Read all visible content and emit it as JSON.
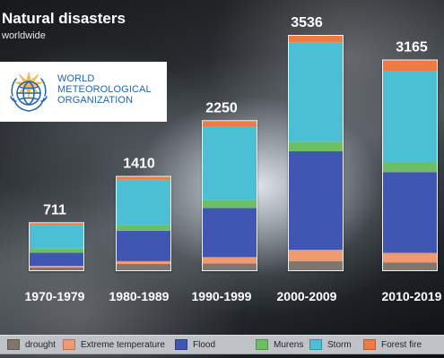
{
  "header": {
    "title": "Natural disasters",
    "subtitle": "worldwide"
  },
  "logo": {
    "lines": [
      "WORLD",
      "METEOROLOGICAL",
      "ORGANIZATION"
    ],
    "icon": "world-meteorological-organization-emblem"
  },
  "colors": {
    "drought": "#7f766f",
    "extreme_temperature": "#f09a71",
    "flood": "#3f56b2",
    "murens": "#6cbf62",
    "storm": "#4bbfd3",
    "forest_fire": "#f07a43",
    "bar_outline": "#f1f3f5",
    "logo_blue": "#1f64b5"
  },
  "chart_data": {
    "type": "bar",
    "stacked": true,
    "title": "Natural disasters",
    "subtitle": "worldwide",
    "categories": [
      "1970-1979",
      "1980-1989",
      "1990-1999",
      "2000-2009",
      "2010-2019"
    ],
    "totals": [
      711,
      1410,
      2250,
      3536,
      3165
    ],
    "series": [
      {
        "name": "drought",
        "values": [
          42,
          96,
          102,
          136,
          119
        ]
      },
      {
        "name": "Extreme temperature",
        "values": [
          25,
          41,
          96,
          172,
          144
        ]
      },
      {
        "name": "Flood",
        "values": [
          199,
          458,
          742,
          1488,
          1218
        ]
      },
      {
        "name": "Murens",
        "values": [
          61,
          90,
          117,
          143,
          145
        ]
      },
      {
        "name": "Storm",
        "values": [
          358,
          682,
          1110,
          1499,
          1376
        ]
      },
      {
        "name": "Forest fire",
        "values": [
          26,
          43,
          83,
          98,
          163
        ]
      }
    ],
    "ylim": [
      0,
      3536
    ],
    "grid": false,
    "legend_position": "bottom"
  }
}
